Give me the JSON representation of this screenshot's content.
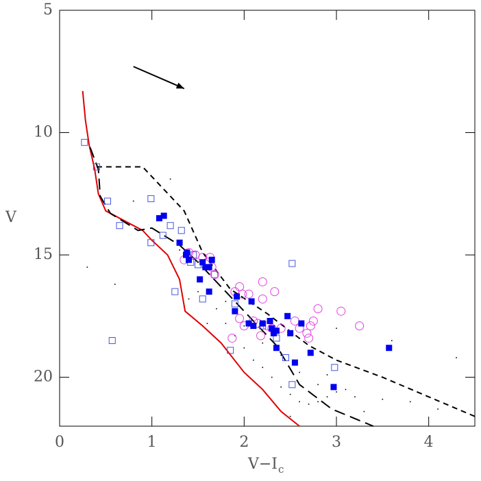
{
  "chart_data": {
    "type": "scatter",
    "xlabel": "V−I",
    "xlabel_sub": "c",
    "ylabel": "V",
    "xlim": [
      0,
      4.5
    ],
    "ylim": [
      22,
      5
    ],
    "xticks": [
      0,
      1,
      2,
      3,
      4
    ],
    "yticks": [
      5,
      10,
      15,
      20
    ],
    "arrow": {
      "x": [
        0.8,
        1.35
      ],
      "y": [
        7.3,
        8.2
      ],
      "color": "#000000"
    },
    "series": [
      {
        "kind": "dots",
        "color": "#000000",
        "x": [
          1.5,
          1.7,
          1.8,
          1.9,
          2.0,
          2.1,
          2.2,
          2.3,
          2.4,
          2.5,
          2.6,
          2.7,
          2.8,
          2.9,
          3.0,
          3.1,
          3.2,
          2.0,
          2.2,
          2.4,
          1.6,
          1.8,
          2.6,
          2.8,
          3.3,
          3.5,
          3.8,
          4.1,
          0.8,
          1.1,
          1.3,
          0.6,
          3.0,
          3.6,
          4.3,
          2.5,
          1.4,
          0.3,
          1.2,
          2.9
        ],
        "y": [
          16.5,
          17.2,
          17.8,
          18.3,
          18.8,
          19.3,
          19.6,
          20.0,
          20.4,
          20.7,
          21.0,
          21.1,
          21.0,
          20.8,
          20.6,
          20.5,
          20.8,
          17.9,
          18.6,
          19.1,
          17.8,
          16.9,
          19.8,
          20.3,
          21.4,
          20.9,
          21.0,
          21.3,
          12.8,
          13.5,
          14.8,
          16.2,
          18.0,
          18.5,
          19.2,
          21.6,
          16.8,
          15.5,
          11.9,
          19.9
        ]
      },
      {
        "kind": "line",
        "color": "#e00000",
        "style": "solid",
        "x": [
          0.25,
          0.28,
          0.32,
          0.38,
          0.42,
          0.5,
          0.7,
          0.9,
          1.0,
          1.17,
          1.3,
          1.36,
          1.55,
          1.75,
          2.0,
          2.2,
          2.4,
          2.6
        ],
        "y": [
          8.3,
          9.5,
          10.5,
          11.5,
          12.5,
          13.2,
          13.6,
          14.0,
          14.4,
          15.0,
          16.0,
          17.3,
          17.9,
          18.6,
          19.8,
          20.5,
          21.4,
          22.0
        ]
      },
      {
        "kind": "line",
        "color": "#000000",
        "style": "long",
        "x": [
          0.33,
          0.42,
          0.44,
          0.55,
          0.85,
          1.0,
          1.3,
          1.5,
          1.75,
          2.0,
          2.35,
          2.6,
          2.95,
          3.4
        ],
        "y": [
          10.6,
          11.5,
          12.6,
          13.3,
          14.0,
          13.9,
          14.6,
          15.3,
          16.3,
          17.3,
          18.7,
          20.3,
          21.3,
          22.0
        ]
      },
      {
        "kind": "line",
        "color": "#000000",
        "style": "short",
        "x": [
          0.4,
          0.9,
          1.35,
          1.55,
          1.85,
          2.25,
          2.7,
          3.0,
          3.5,
          4.0,
          4.5
        ],
        "y": [
          11.4,
          11.4,
          13.2,
          14.9,
          16.4,
          17.4,
          18.7,
          19.3,
          20.0,
          20.8,
          21.6
        ]
      },
      {
        "kind": "open-square",
        "color": "#4455dd",
        "x": [
          0.27,
          0.4,
          0.52,
          0.65,
          0.99,
          0.99,
          1.12,
          1.2,
          1.32,
          1.25,
          1.55,
          1.42,
          1.45,
          1.5,
          1.68,
          1.85,
          1.9,
          2.2,
          2.35,
          2.45,
          2.52,
          2.52,
          2.98,
          0.57
        ],
        "y": [
          10.4,
          11.4,
          12.8,
          13.8,
          12.7,
          14.5,
          14.2,
          13.8,
          14.0,
          16.5,
          16.8,
          15.3,
          15.0,
          15.4,
          15.8,
          18.9,
          17.0,
          17.9,
          18.4,
          19.2,
          20.3,
          15.35,
          19.6,
          18.5
        ]
      },
      {
        "kind": "open-circle",
        "color": "#e040e0",
        "x": [
          1.35,
          1.4,
          1.47,
          1.55,
          1.6,
          1.63,
          1.68,
          1.65,
          1.9,
          1.95,
          1.98,
          2.05,
          2.2,
          2.2,
          2.33,
          1.95,
          2.0,
          2.1,
          2.15,
          2.25,
          2.3,
          2.4,
          2.55,
          2.6,
          2.68,
          2.7,
          2.72,
          2.75,
          2.8,
          3.05,
          3.25,
          1.87,
          2.18
        ],
        "y": [
          15.2,
          14.9,
          15.0,
          15.1,
          15.3,
          15.1,
          15.8,
          15.5,
          16.5,
          16.3,
          16.6,
          16.6,
          16.1,
          16.8,
          16.5,
          17.6,
          17.9,
          17.7,
          17.8,
          17.9,
          18.0,
          18.0,
          17.7,
          18.0,
          18.2,
          18.4,
          17.9,
          17.7,
          17.2,
          17.3,
          17.9,
          18.4,
          18.3
        ]
      },
      {
        "kind": "filled-square",
        "color": "#0000ee",
        "x": [
          1.08,
          1.13,
          1.3,
          1.37,
          1.4,
          1.38,
          1.55,
          1.58,
          1.62,
          1.65,
          1.52,
          1.62,
          1.9,
          1.92,
          2.08,
          2.05,
          2.1,
          2.2,
          2.28,
          2.3,
          2.35,
          2.35,
          2.32,
          2.47,
          2.5,
          2.62,
          2.55,
          2.72,
          2.97,
          3.57
        ],
        "y": [
          13.5,
          13.4,
          14.5,
          15.0,
          15.2,
          14.9,
          15.3,
          15.5,
          15.5,
          15.2,
          16.0,
          16.5,
          17.3,
          16.7,
          16.9,
          17.8,
          17.9,
          17.8,
          17.7,
          18.0,
          18.1,
          18.8,
          18.2,
          17.5,
          18.2,
          17.8,
          19.4,
          19.0,
          20.4,
          18.8
        ]
      }
    ]
  }
}
